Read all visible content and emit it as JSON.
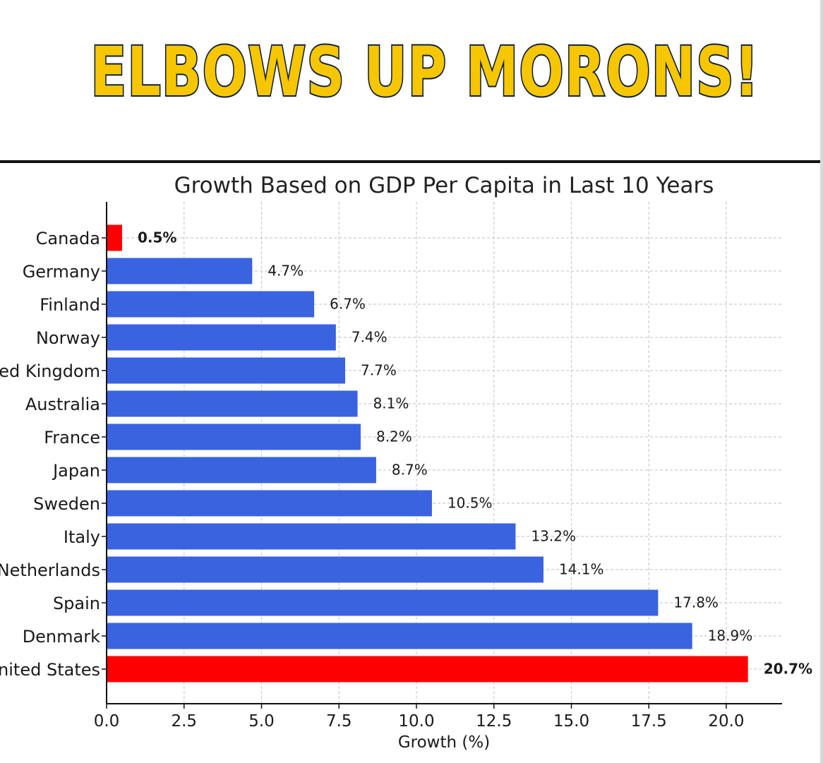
{
  "headline": "ELBOWS UP MORONS!",
  "colors": {
    "headline_fill": "#f6c700",
    "headline_outline": "#0f1f3a",
    "bar_default": "#3a63e0",
    "bar_highlight": "#ff0000",
    "grid": "#cccccc"
  },
  "chart_data": {
    "type": "bar",
    "orientation": "horizontal",
    "title": "Growth Based on GDP Per Capita in Last 10 Years",
    "xlabel": "Growth (%)",
    "ylabel": "",
    "xlim": [
      0,
      21.8
    ],
    "xticks": [
      0.0,
      2.5,
      5.0,
      7.5,
      10.0,
      12.5,
      15.0,
      17.5,
      20.0
    ],
    "xtick_labels": [
      "0.0",
      "2.5",
      "5.0",
      "7.5",
      "10.0",
      "12.5",
      "15.0",
      "17.5",
      "20.0"
    ],
    "grid": true,
    "categories": [
      "Canada",
      "Germany",
      "Finland",
      "Norway",
      "United Kingdom",
      "Australia",
      "France",
      "Japan",
      "Sweden",
      "Italy",
      "Netherlands",
      "Spain",
      "Denmark",
      "United States"
    ],
    "values": [
      0.5,
      4.7,
      6.7,
      7.4,
      7.7,
      8.1,
      8.2,
      8.7,
      10.5,
      13.2,
      14.1,
      17.8,
      18.9,
      20.7
    ],
    "value_labels": [
      "0.5%",
      "4.7%",
      "6.7%",
      "7.4%",
      "7.7%",
      "8.1%",
      "8.2%",
      "8.7%",
      "10.5%",
      "13.2%",
      "14.1%",
      "17.8%",
      "18.9%",
      "20.7%"
    ],
    "highlighted": [
      "Canada",
      "United States"
    ]
  }
}
